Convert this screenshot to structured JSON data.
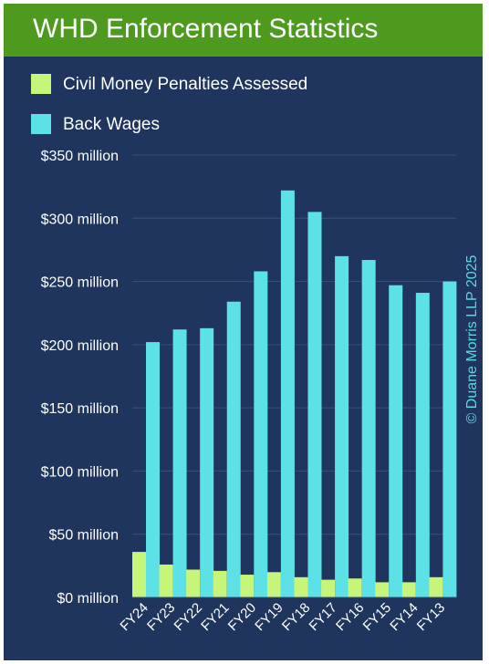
{
  "header": {
    "title": "WHD Enforcement Statistics"
  },
  "watermark": "© Duane Morris LLP 2025",
  "colors": {
    "background": "#1f355e",
    "title_bar": "#4e9a1f",
    "penalties": "#c6f57a",
    "back_wages": "#5ce1e6",
    "text": "#ffffff",
    "grid": "#3a5078"
  },
  "chart_data": {
    "type": "bar",
    "title": "WHD Enforcement Statistics",
    "categories": [
      "FY24",
      "FY23",
      "FY22",
      "FY21",
      "FY20",
      "FY19",
      "FY18",
      "FY17",
      "FY16",
      "FY15",
      "FY14",
      "FY13"
    ],
    "series": [
      {
        "name": "Civil Money Penalties Assessed",
        "values": [
          36,
          26,
          22,
          21,
          18,
          20,
          16,
          14,
          15,
          12,
          12,
          16
        ]
      },
      {
        "name": "Back Wages",
        "values": [
          202,
          212,
          213,
          234,
          258,
          322,
          305,
          270,
          267,
          247,
          241,
          250
        ]
      }
    ],
    "y_ticks": [
      {
        "value": 0,
        "label": "$0 million"
      },
      {
        "value": 50,
        "label": "$50 million"
      },
      {
        "value": 100,
        "label": "$100 million"
      },
      {
        "value": 150,
        "label": "$150 million"
      },
      {
        "value": 200,
        "label": "$200 million"
      },
      {
        "value": 250,
        "label": "$250 million"
      },
      {
        "value": 300,
        "label": "$300 million"
      },
      {
        "value": 350,
        "label": "$350 million"
      }
    ],
    "ylim": [
      0,
      350
    ],
    "grid": true,
    "legend_position": "top-left"
  }
}
